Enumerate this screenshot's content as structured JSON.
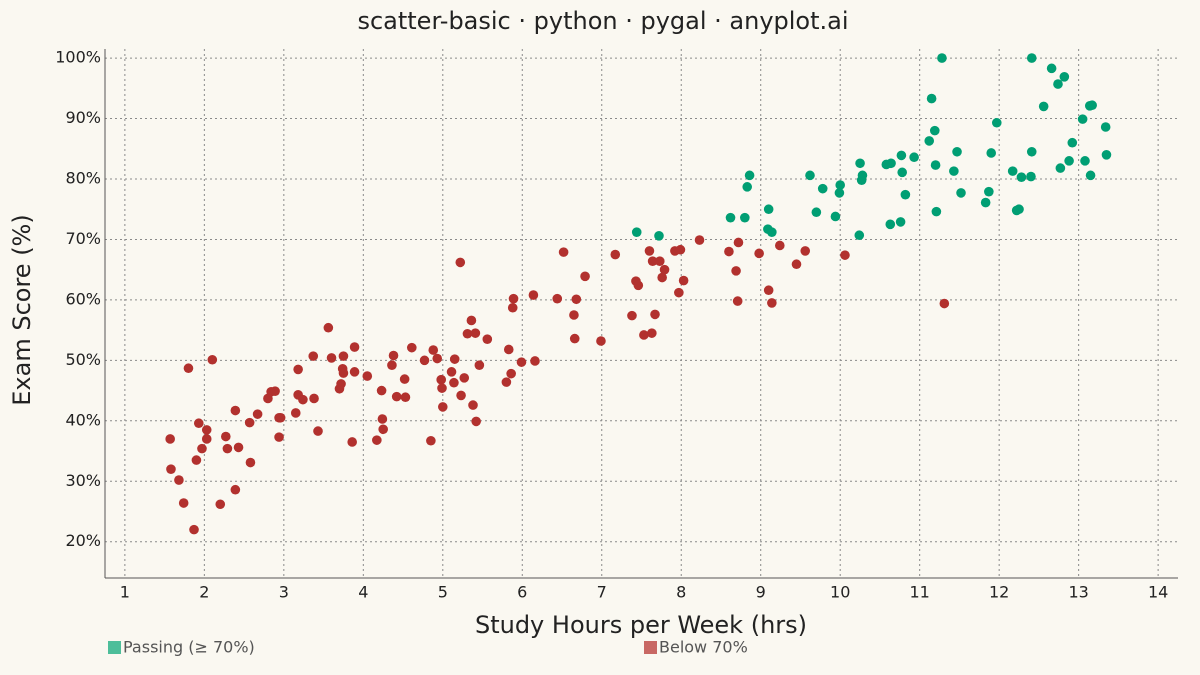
{
  "chart_data": {
    "type": "scatter",
    "title": "scatter-basic · python · pygal · anyplot.ai",
    "xlabel": "Study Hours per Week (hrs)",
    "ylabel": "Exam Score (%)",
    "xlim": [
      0.75,
      14.25
    ],
    "ylim": [
      14,
      101.5
    ],
    "x_ticks": [
      1,
      2,
      3,
      4,
      5,
      6,
      7,
      8,
      9,
      10,
      11,
      12,
      13,
      14
    ],
    "x_tick_labels": [
      "1",
      "2",
      "3",
      "4",
      "5",
      "6",
      "7",
      "8",
      "9",
      "10",
      "11",
      "12",
      "13",
      "14"
    ],
    "y_ticks": [
      20,
      30,
      40,
      50,
      60,
      70,
      80,
      90,
      100
    ],
    "y_tick_labels": [
      "20%",
      "30%",
      "40%",
      "50%",
      "60%",
      "70%",
      "80%",
      "90%",
      "100%"
    ],
    "grid": true,
    "legend_position": "bottom",
    "series": [
      {
        "name": "Passing (≥ 70%)",
        "color": "#009E73",
        "legend_color": "#4DBE9A",
        "points": [
          [
            7.44,
            71.2
          ],
          [
            7.72,
            70.6
          ],
          [
            8.62,
            73.6
          ],
          [
            8.8,
            73.6
          ],
          [
            8.83,
            78.7
          ],
          [
            8.86,
            80.6
          ],
          [
            9.09,
            71.7
          ],
          [
            9.1,
            75.0
          ],
          [
            9.14,
            71.2
          ],
          [
            9.62,
            80.6
          ],
          [
            9.7,
            74.5
          ],
          [
            9.78,
            78.4
          ],
          [
            9.94,
            73.8
          ],
          [
            9.99,
            77.7
          ],
          [
            10.0,
            79.0
          ],
          [
            10.24,
            70.7
          ],
          [
            10.25,
            82.6
          ],
          [
            10.27,
            79.8
          ],
          [
            10.28,
            80.6
          ],
          [
            10.58,
            82.4
          ],
          [
            10.64,
            82.6
          ],
          [
            10.63,
            72.5
          ],
          [
            10.76,
            72.9
          ],
          [
            10.77,
            83.9
          ],
          [
            10.78,
            81.1
          ],
          [
            10.82,
            77.4
          ],
          [
            10.93,
            83.6
          ],
          [
            11.12,
            86.3
          ],
          [
            11.15,
            93.3
          ],
          [
            11.19,
            88.0
          ],
          [
            11.2,
            82.3
          ],
          [
            11.21,
            74.6
          ],
          [
            11.28,
            100.0
          ],
          [
            11.43,
            81.3
          ],
          [
            11.47,
            84.5
          ],
          [
            11.52,
            77.7
          ],
          [
            11.83,
            76.1
          ],
          [
            11.87,
            77.9
          ],
          [
            11.9,
            84.3
          ],
          [
            11.97,
            89.3
          ],
          [
            12.17,
            81.3
          ],
          [
            12.22,
            74.8
          ],
          [
            12.25,
            75.0
          ],
          [
            12.28,
            80.3
          ],
          [
            12.4,
            80.4
          ],
          [
            12.41,
            84.5
          ],
          [
            12.41,
            100.0
          ],
          [
            12.56,
            92.0
          ],
          [
            12.66,
            98.3
          ],
          [
            12.74,
            95.7
          ],
          [
            12.77,
            81.8
          ],
          [
            12.82,
            96.9
          ],
          [
            12.88,
            83.0
          ],
          [
            12.92,
            86.0
          ],
          [
            13.05,
            89.9
          ],
          [
            13.08,
            83.0
          ],
          [
            13.14,
            92.1
          ],
          [
            13.15,
            80.6
          ],
          [
            13.17,
            92.2
          ],
          [
            13.34,
            88.6
          ],
          [
            13.35,
            84.0
          ]
        ]
      },
      {
        "name": "Below 70%",
        "color": "#B2312E",
        "legend_color": "#C86864",
        "points": [
          [
            1.57,
            37.0
          ],
          [
            1.58,
            32.0
          ],
          [
            1.68,
            30.2
          ],
          [
            1.74,
            26.4
          ],
          [
            1.8,
            48.7
          ],
          [
            1.87,
            22.0
          ],
          [
            1.9,
            33.5
          ],
          [
            1.93,
            39.6
          ],
          [
            1.97,
            35.4
          ],
          [
            2.03,
            38.5
          ],
          [
            2.03,
            37.0
          ],
          [
            2.1,
            50.1
          ],
          [
            2.2,
            26.2
          ],
          [
            2.27,
            37.4
          ],
          [
            2.29,
            35.4
          ],
          [
            2.39,
            41.7
          ],
          [
            2.39,
            28.6
          ],
          [
            2.43,
            35.6
          ],
          [
            2.57,
            39.7
          ],
          [
            2.58,
            33.1
          ],
          [
            2.67,
            41.1
          ],
          [
            2.8,
            43.7
          ],
          [
            2.84,
            44.8
          ],
          [
            2.89,
            44.9
          ],
          [
            2.94,
            37.3
          ],
          [
            2.94,
            40.5
          ],
          [
            2.96,
            40.5
          ],
          [
            3.15,
            41.3
          ],
          [
            3.18,
            44.3
          ],
          [
            3.18,
            48.5
          ],
          [
            3.24,
            43.5
          ],
          [
            3.37,
            50.7
          ],
          [
            3.38,
            43.7
          ],
          [
            3.43,
            38.3
          ],
          [
            3.56,
            55.4
          ],
          [
            3.6,
            50.4
          ],
          [
            3.7,
            45.3
          ],
          [
            3.72,
            46.1
          ],
          [
            3.74,
            48.6
          ],
          [
            3.75,
            50.7
          ],
          [
            3.75,
            47.9
          ],
          [
            3.86,
            36.5
          ],
          [
            3.89,
            52.2
          ],
          [
            3.89,
            48.1
          ],
          [
            4.05,
            47.4
          ],
          [
            4.17,
            36.8
          ],
          [
            4.23,
            45.0
          ],
          [
            4.24,
            40.3
          ],
          [
            4.25,
            38.6
          ],
          [
            4.36,
            49.2
          ],
          [
            4.38,
            50.8
          ],
          [
            4.42,
            44.0
          ],
          [
            4.52,
            46.9
          ],
          [
            4.53,
            43.9
          ],
          [
            4.61,
            52.1
          ],
          [
            4.77,
            50.0
          ],
          [
            4.85,
            36.7
          ],
          [
            4.88,
            51.7
          ],
          [
            4.93,
            50.3
          ],
          [
            4.98,
            46.8
          ],
          [
            5.0,
            42.3
          ],
          [
            4.99,
            45.4
          ],
          [
            5.11,
            48.1
          ],
          [
            5.14,
            46.3
          ],
          [
            5.15,
            50.2
          ],
          [
            5.22,
            66.2
          ],
          [
            5.23,
            44.2
          ],
          [
            5.27,
            47.1
          ],
          [
            5.31,
            54.4
          ],
          [
            5.36,
            56.6
          ],
          [
            5.38,
            42.6
          ],
          [
            5.42,
            39.9
          ],
          [
            5.41,
            54.5
          ],
          [
            5.46,
            49.2
          ],
          [
            5.56,
            53.5
          ],
          [
            5.8,
            46.4
          ],
          [
            5.83,
            51.8
          ],
          [
            5.86,
            47.8
          ],
          [
            5.88,
            58.7
          ],
          [
            5.89,
            60.2
          ],
          [
            5.99,
            49.7
          ],
          [
            6.14,
            60.8
          ],
          [
            6.16,
            49.9
          ],
          [
            6.44,
            60.2
          ],
          [
            6.52,
            67.9
          ],
          [
            6.65,
            57.5
          ],
          [
            6.66,
            53.6
          ],
          [
            6.68,
            60.1
          ],
          [
            6.79,
            63.9
          ],
          [
            6.99,
            53.2
          ],
          [
            7.17,
            67.5
          ],
          [
            7.38,
            57.4
          ],
          [
            7.43,
            63.1
          ],
          [
            7.46,
            62.4
          ],
          [
            7.53,
            54.2
          ],
          [
            7.6,
            68.1
          ],
          [
            7.63,
            54.5
          ],
          [
            7.64,
            66.4
          ],
          [
            7.67,
            57.6
          ],
          [
            7.73,
            66.4
          ],
          [
            7.76,
            63.7
          ],
          [
            7.79,
            65.0
          ],
          [
            7.92,
            68.1
          ],
          [
            7.97,
            61.2
          ],
          [
            7.99,
            68.3
          ],
          [
            8.03,
            63.2
          ],
          [
            8.23,
            69.9
          ],
          [
            8.6,
            68.0
          ],
          [
            8.69,
            64.8
          ],
          [
            8.71,
            59.8
          ],
          [
            8.72,
            69.5
          ],
          [
            8.98,
            67.7
          ],
          [
            9.1,
            61.6
          ],
          [
            9.14,
            59.5
          ],
          [
            9.24,
            69.0
          ],
          [
            9.45,
            65.9
          ],
          [
            9.56,
            68.1
          ],
          [
            10.06,
            67.4
          ],
          [
            11.31,
            59.4
          ]
        ]
      }
    ]
  }
}
